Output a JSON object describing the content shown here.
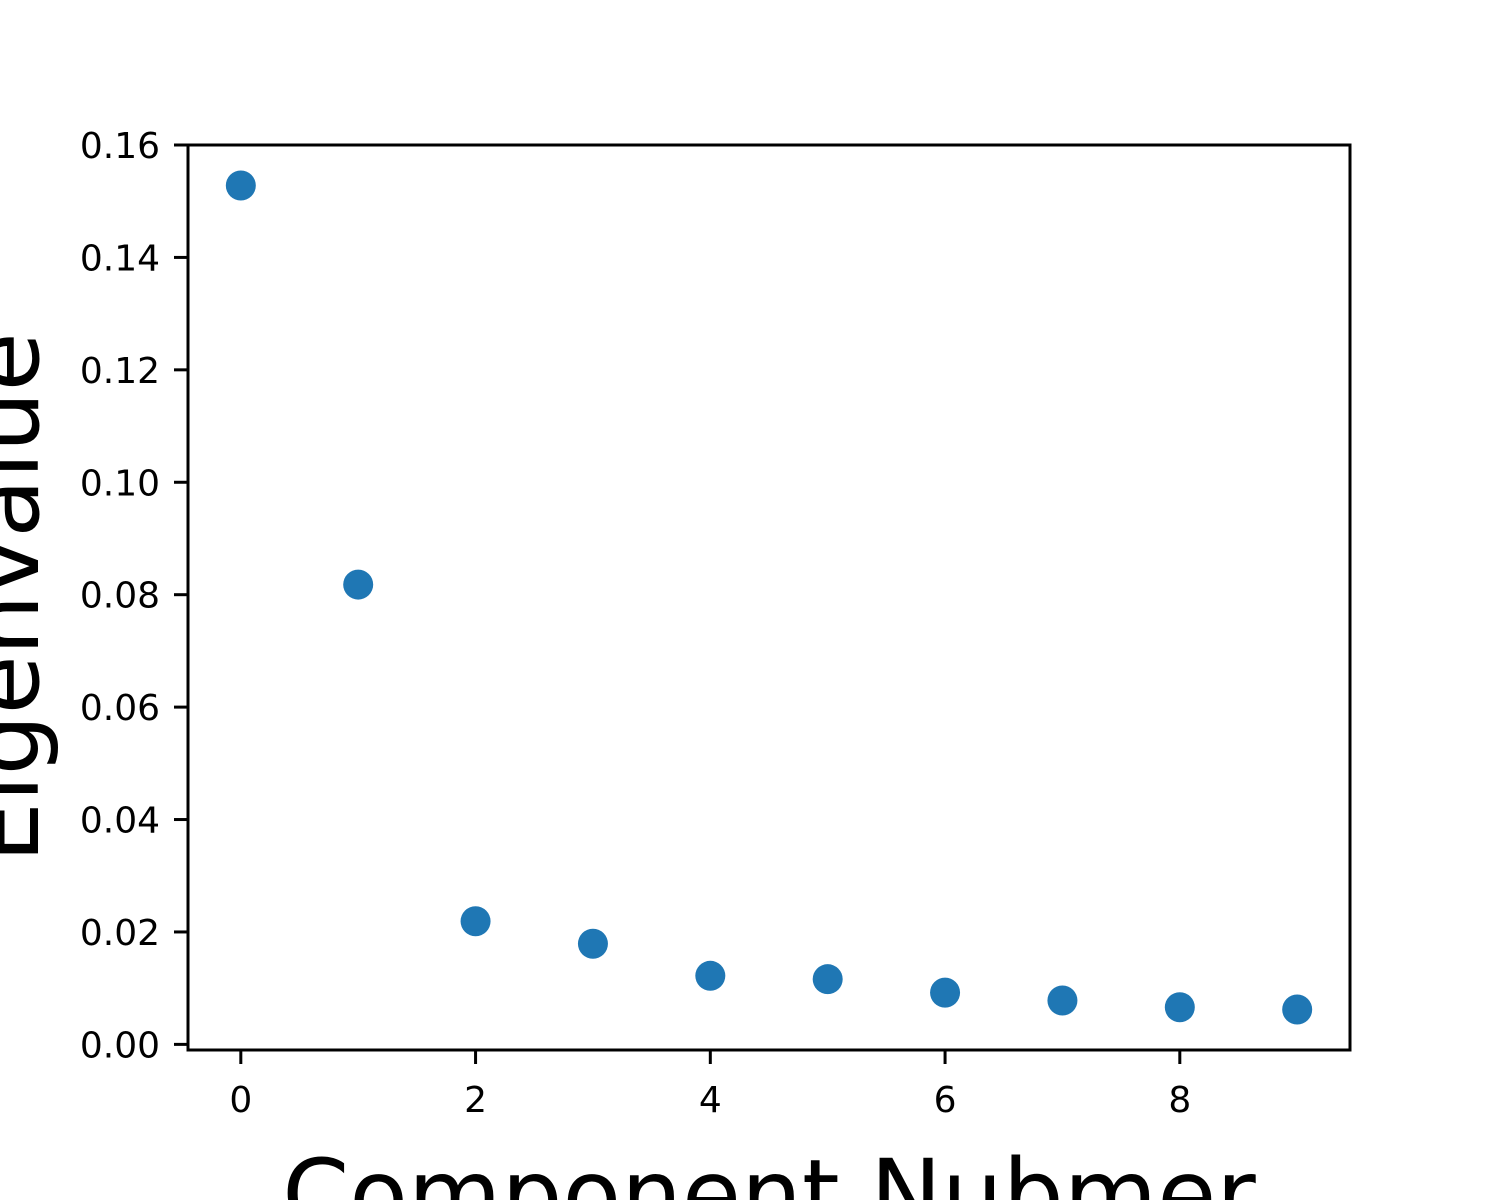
{
  "chart_data": {
    "type": "scatter",
    "title": "",
    "xlabel": "Component Nubmer",
    "ylabel": "Eigenvalue",
    "x": [
      0,
      1,
      2,
      3,
      4,
      5,
      6,
      7,
      8,
      9
    ],
    "y": [
      0.1528,
      0.0818,
      0.0219,
      0.0179,
      0.0122,
      0.0116,
      0.0092,
      0.0078,
      0.0066,
      0.0062
    ],
    "xlim": [
      -0.45,
      9.45
    ],
    "ylim": [
      -0.001,
      0.16
    ],
    "xticks": [
      0,
      2,
      4,
      6,
      8
    ],
    "xtick_labels": [
      "0",
      "2",
      "4",
      "6",
      "8"
    ],
    "yticks": [
      0.0,
      0.02,
      0.04,
      0.06,
      0.08,
      0.1,
      0.12,
      0.14,
      0.16
    ],
    "ytick_labels": [
      "0.00",
      "0.02",
      "0.04",
      "0.06",
      "0.08",
      "0.10",
      "0.12",
      "0.14",
      "0.16"
    ],
    "grid": false,
    "marker_color": "#1f77b4",
    "axis_color": "#000000"
  }
}
